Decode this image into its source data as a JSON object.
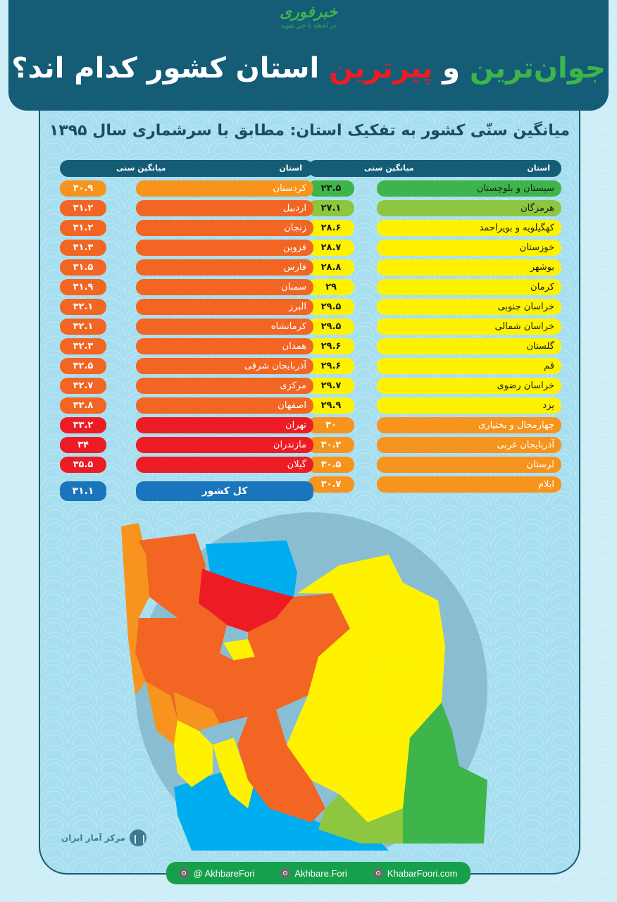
{
  "header": {
    "brand": "خبرفوری",
    "tagline": "در لحظه با خبر شوید",
    "title_parts": [
      "جوان‌ترین",
      " و ",
      "پیرترین",
      " استان کشور کدام اند؟"
    ]
  },
  "subtitle": "میانگین سنّی کشور به تفکیک استان: مطابق با سرشماری سال ۱۳۹۵",
  "columns": {
    "province_label": "استان",
    "age_label": "میانگین سنی"
  },
  "colors": {
    "dark_green": "#3db54a",
    "light_green": "#8dc63f",
    "yellow": "#fff200",
    "light_orange": "#f7941d",
    "orange": "#f26522",
    "red": "#ed1c24",
    "blue": "#1b75bc",
    "header": "#155c77",
    "sea": "#00aeef"
  },
  "right_table": [
    {
      "province": "سیستان و بلوچستان",
      "age": "۲۳.۵",
      "color": "#3db54a"
    },
    {
      "province": "هرمزگان",
      "age": "۲۷.۱",
      "color": "#8dc63f"
    },
    {
      "province": "کهگیلویه و بویراحمد",
      "age": "۲۸.۶",
      "color": "#fff200"
    },
    {
      "province": "خوزستان",
      "age": "۲۸.۷",
      "color": "#fff200"
    },
    {
      "province": "بوشهر",
      "age": "۲۸.۸",
      "color": "#fff200"
    },
    {
      "province": "کرمان",
      "age": "۲۹",
      "color": "#fff200"
    },
    {
      "province": "خراسان جنوبی",
      "age": "۲۹.۵",
      "color": "#fff200"
    },
    {
      "province": "خراسان شمالی",
      "age": "۲۹.۵",
      "color": "#fff200"
    },
    {
      "province": "گلستان",
      "age": "۲۹.۶",
      "color": "#fff200"
    },
    {
      "province": "قم",
      "age": "۲۹.۶",
      "color": "#fff200"
    },
    {
      "province": "خراسان رضوی",
      "age": "۲۹.۷",
      "color": "#fff200"
    },
    {
      "province": "یزد",
      "age": "۲۹.۹",
      "color": "#fff200"
    },
    {
      "province": "چهارمحال و بختیاری",
      "age": "۳۰",
      "color": "#f7941d"
    },
    {
      "province": "آذربایجان غربی",
      "age": "۳۰.۲",
      "color": "#f7941d"
    },
    {
      "province": "لرستان",
      "age": "۳۰.۵",
      "color": "#f7941d"
    },
    {
      "province": "ایلام",
      "age": "۳۰.۷",
      "color": "#f7941d"
    }
  ],
  "left_table": [
    {
      "province": "کردستان",
      "age": "۳۰.۹",
      "color": "#f7941d"
    },
    {
      "province": "اردبیل",
      "age": "۳۱.۲",
      "color": "#f26522"
    },
    {
      "province": "زنجان",
      "age": "۳۱.۲",
      "color": "#f26522"
    },
    {
      "province": "قزوین",
      "age": "۳۱.۳",
      "color": "#f26522"
    },
    {
      "province": "فارس",
      "age": "۳۱.۵",
      "color": "#f26522"
    },
    {
      "province": "سمنان",
      "age": "۳۱.۹",
      "color": "#f26522"
    },
    {
      "province": "البرز",
      "age": "۳۲.۱",
      "color": "#f26522"
    },
    {
      "province": "کرمانشاه",
      "age": "۳۲.۱",
      "color": "#f26522"
    },
    {
      "province": "همدان",
      "age": "۳۲.۳",
      "color": "#f26522"
    },
    {
      "province": "آذربایجان شرقی",
      "age": "۳۲.۵",
      "color": "#f26522"
    },
    {
      "province": "مرکزی",
      "age": "۳۲.۷",
      "color": "#f26522"
    },
    {
      "province": "اصفهان",
      "age": "۳۲.۸",
      "color": "#f26522"
    },
    {
      "province": "تهران",
      "age": "۳۳.۲",
      "color": "#ed1c24"
    },
    {
      "province": "مازندران",
      "age": "۳۴",
      "color": "#ed1c24"
    },
    {
      "province": "گیلان",
      "age": "۳۵.۵",
      "color": "#ed1c24"
    }
  ],
  "total": {
    "province": "کل کشور",
    "age": "۳۱.۱",
    "color": "#1b75bc"
  },
  "source": "مرکز آمار ایران",
  "social": [
    {
      "icon": "telegram-icon",
      "label": "@ AkhbareFori"
    },
    {
      "icon": "instagram-icon",
      "label": "Akhbare.Fori"
    },
    {
      "icon": "web-icon",
      "label": "KhabarFoori.com"
    }
  ],
  "chart_data": {
    "type": "table",
    "title": "میانگین سنّی کشور به تفکیک استان: مطابق با سرشماری سال ۱۳۹۵",
    "columns": [
      "استان",
      "میانگین سنی"
    ],
    "categories": [
      "سیستان و بلوچستان",
      "هرمزگان",
      "کهگیلویه و بویراحمد",
      "خوزستان",
      "بوشهر",
      "کرمان",
      "خراسان جنوبی",
      "خراسان شمالی",
      "گلستان",
      "قم",
      "خراسان رضوی",
      "یزد",
      "چهارمحال و بختیاری",
      "آذربایجان غربی",
      "لرستان",
      "ایلام",
      "کردستان",
      "اردبیل",
      "زنجان",
      "قزوین",
      "فارس",
      "سمنان",
      "البرز",
      "کرمانشاه",
      "همدان",
      "آذربایجان شرقی",
      "مرکزی",
      "اصفهان",
      "تهران",
      "مازندران",
      "گیلان"
    ],
    "values": [
      23.5,
      27.1,
      28.6,
      28.7,
      28.8,
      29,
      29.5,
      29.5,
      29.6,
      29.6,
      29.7,
      29.9,
      30,
      30.2,
      30.5,
      30.7,
      30.9,
      31.2,
      31.2,
      31.3,
      31.5,
      31.9,
      32.1,
      32.1,
      32.3,
      32.5,
      32.7,
      32.8,
      33.2,
      34,
      35.5
    ],
    "national_average": 31.1,
    "color_scale": [
      "#3db54a",
      "#8dc63f",
      "#fff200",
      "#f7941d",
      "#f26522",
      "#ed1c24"
    ]
  }
}
